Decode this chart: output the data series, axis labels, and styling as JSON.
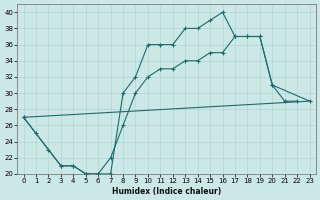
{
  "xlabel": "Humidex (Indice chaleur)",
  "xlim": [
    -0.5,
    23.5
  ],
  "ylim": [
    20,
    41
  ],
  "yticks": [
    20,
    22,
    24,
    26,
    28,
    30,
    32,
    34,
    36,
    38,
    40
  ],
  "xticks": [
    0,
    1,
    2,
    3,
    4,
    5,
    6,
    7,
    8,
    9,
    10,
    11,
    12,
    13,
    14,
    15,
    16,
    17,
    18,
    19,
    20,
    21,
    22,
    23
  ],
  "bg_color": "#cce8e6",
  "grid_color": "#b0d5d3",
  "line_color": "#1a6b6b",
  "line1_x": [
    0,
    1,
    2,
    3,
    4,
    5,
    6,
    7,
    8,
    9,
    10,
    11,
    12,
    13,
    14,
    15,
    16,
    17,
    18,
    19,
    20,
    21,
    22
  ],
  "line1_y": [
    27,
    25,
    23,
    21,
    21,
    20,
    20,
    20,
    30,
    32,
    36,
    36,
    36,
    38,
    38,
    39,
    40,
    37,
    37,
    37,
    31,
    29,
    29
  ],
  "line2_x": [
    0,
    23
  ],
  "line2_y": [
    27,
    29
  ],
  "line3_x": [
    0,
    3,
    4,
    5,
    6,
    7,
    8,
    9,
    10,
    11,
    12,
    13,
    14,
    15,
    16,
    17,
    18,
    19,
    20,
    23
  ],
  "line3_y": [
    27,
    21,
    21,
    20,
    20,
    22,
    26,
    30,
    32,
    33,
    33,
    34,
    34,
    35,
    35,
    37,
    37,
    37,
    31,
    29
  ]
}
